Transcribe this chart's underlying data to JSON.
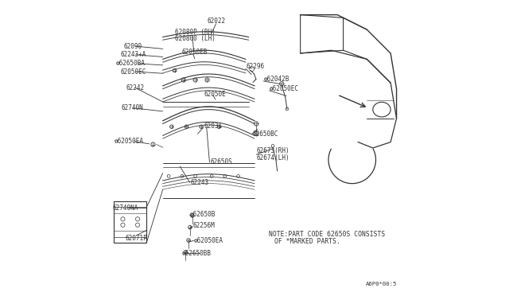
{
  "bg_color": "#FFFFFF",
  "diagram_code": "A6P0*00:5",
  "note_line1": "NOTE:PART CODE 62650S CONSISTS",
  "note_line2": "OF *MARKED PARTS.",
  "font_size_labels": 5.5,
  "line_color": "#333333"
}
